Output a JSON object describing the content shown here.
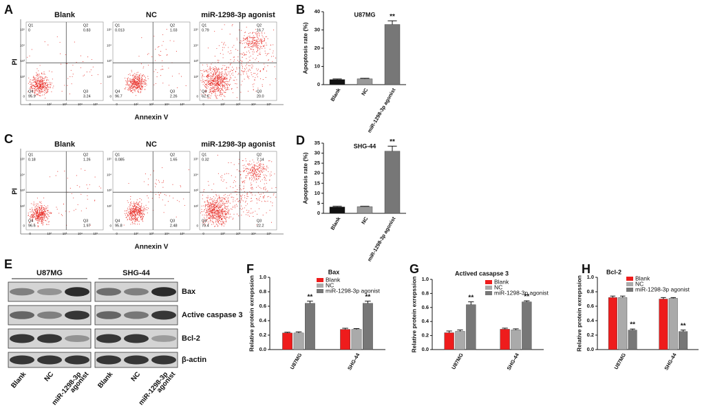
{
  "flow": [
    {
      "letter": "A",
      "y_label": "PI",
      "x_label": "Annexin V",
      "axis_ticks": [
        "0",
        "10²",
        "10³",
        "10⁴",
        "10⁵"
      ],
      "plots": [
        {
          "title": "Blank",
          "quadrants": [
            {
              "name": "Q1",
              "value": "0"
            },
            {
              "name": "Q2",
              "value": "0.83"
            },
            {
              "name": "Q3",
              "value": "3.24"
            },
            {
              "name": "Q4",
              "value": "95.9"
            }
          ]
        },
        {
          "title": "NC",
          "quadrants": [
            {
              "name": "Q1",
              "value": "0.013"
            },
            {
              "name": "Q2",
              "value": "1.03"
            },
            {
              "name": "Q3",
              "value": "2.26"
            },
            {
              "name": "Q4",
              "value": "96.7"
            }
          ]
        },
        {
          "title": "miR-1298-3p agonist",
          "quadrants": [
            {
              "name": "Q1",
              "value": "0.79"
            },
            {
              "name": "Q2",
              "value": "16.7"
            },
            {
              "name": "Q3",
              "value": "20.0"
            },
            {
              "name": "Q4",
              "value": "62.6"
            }
          ]
        }
      ]
    },
    {
      "letter": "C",
      "y_label": "PI",
      "x_label": "Annexin V",
      "axis_ticks": [
        "0",
        "10²",
        "10³",
        "10⁴",
        "10⁵"
      ],
      "plots": [
        {
          "title": "Blank",
          "quadrants": [
            {
              "name": "Q1",
              "value": "0.18"
            },
            {
              "name": "Q2",
              "value": "1.26"
            },
            {
              "name": "Q3",
              "value": "1.97"
            },
            {
              "name": "Q4",
              "value": "96.6"
            }
          ]
        },
        {
          "title": "NC",
          "quadrants": [
            {
              "name": "Q1",
              "value": "0.085"
            },
            {
              "name": "Q2",
              "value": "1.65"
            },
            {
              "name": "Q3",
              "value": "2.48"
            },
            {
              "name": "Q4",
              "value": "95.8"
            }
          ]
        },
        {
          "title": "miR-1298-3p agonist",
          "quadrants": [
            {
              "name": "Q1",
              "value": "0.32"
            },
            {
              "name": "Q2",
              "value": "7.14"
            },
            {
              "name": "Q3",
              "value": "22.2"
            },
            {
              "name": "Q4",
              "value": "70.4"
            }
          ]
        }
      ]
    }
  ],
  "blot": {
    "letter": "E",
    "groups": [
      "U87MG",
      "SHG-44"
    ],
    "proteins": [
      "Bax",
      "Active caspase 3",
      "Bcl-2",
      "β-actin"
    ],
    "lanes": [
      [
        "Blank"
      ],
      [
        "NC"
      ],
      [
        "miR-1298-3p",
        "agonist"
      ]
    ]
  },
  "chart_data": [
    {
      "type": "bar",
      "letter": "B",
      "title": "U87MG",
      "y_label": "Apoptosis rate (%)",
      "categories": [
        "Blank",
        "NC",
        "miR-1298-3p agonist"
      ],
      "values": [
        2.8,
        3.2,
        33
      ],
      "errors": [
        0.3,
        0.3,
        2
      ],
      "colors": [
        "#111111",
        "#999999",
        "#777777"
      ],
      "ylim": [
        0,
        40
      ],
      "yticks": [
        0,
        10,
        20,
        30,
        40
      ],
      "annotations": [
        {
          "index": 2,
          "text": "**"
        }
      ]
    },
    {
      "type": "bar",
      "letter": "D",
      "title": "SHG-44",
      "y_label": "Apoptosis rate (%)",
      "categories": [
        "Blank",
        "NC",
        "miR-1298-3p agonist"
      ],
      "values": [
        3.2,
        3.3,
        31
      ],
      "errors": [
        0.3,
        0.2,
        2.5
      ],
      "colors": [
        "#111111",
        "#999999",
        "#777777"
      ],
      "ylim": [
        0,
        35
      ],
      "yticks": [
        0,
        5,
        10,
        15,
        20,
        25,
        30,
        35
      ],
      "annotations": [
        {
          "index": 2,
          "text": "**"
        }
      ]
    },
    {
      "type": "bar",
      "letter": "F",
      "title": "Bax",
      "y_label": "Relative protein exrepssion",
      "categories": [
        "U87MG",
        "SHG-44"
      ],
      "series": [
        {
          "name": "Blank",
          "color": "#ee1c1c",
          "values": [
            0.23,
            0.28
          ],
          "errors": [
            0.01,
            0.015
          ]
        },
        {
          "name": "NC",
          "color": "#aaaaaa",
          "values": [
            0.23,
            0.28
          ],
          "errors": [
            0.015,
            0.01
          ]
        },
        {
          "name": "miR-1298-3p agonist",
          "color": "#777777",
          "values": [
            0.64,
            0.64
          ],
          "errors": [
            0.03,
            0.03
          ]
        }
      ],
      "ylim": [
        0,
        1
      ],
      "yticks": [
        {
          "value": 0,
          "label": "0.0"
        },
        0.2,
        0.4,
        0.6,
        0.8,
        {
          "value": 1,
          "label": "1.0"
        }
      ],
      "annotations": [
        {
          "series": 2,
          "index": 0,
          "text": "**"
        },
        {
          "series": 2,
          "index": 1,
          "text": "**"
        }
      ]
    },
    {
      "type": "bar",
      "letter": "G",
      "title": "Actived casapse 3",
      "y_label": "Relative protein exrepssion",
      "categories": [
        "U87MG",
        "SHG-44"
      ],
      "series": [
        {
          "name": "Blank",
          "color": "#ee1c1c",
          "values": [
            0.24,
            0.29
          ],
          "errors": [
            0.025,
            0.015
          ]
        },
        {
          "name": "NC",
          "color": "#aaaaaa",
          "values": [
            0.26,
            0.28
          ],
          "errors": [
            0.02,
            0.015
          ]
        },
        {
          "name": "miR-1298-3p agonist",
          "color": "#777777",
          "values": [
            0.64,
            0.68
          ],
          "errors": [
            0.04,
            0.015
          ]
        }
      ],
      "ylim": [
        0,
        1
      ],
      "yticks": [
        {
          "value": 0,
          "label": "0.0"
        },
        0.2,
        0.4,
        0.6,
        0.8,
        {
          "value": 1,
          "label": "1.0"
        }
      ],
      "annotations": [
        {
          "series": 2,
          "index": 0,
          "text": "**"
        },
        {
          "series": 2,
          "index": 1,
          "text": "**"
        }
      ]
    },
    {
      "type": "bar",
      "letter": "H",
      "title": "Bcl-2",
      "y_label": "Relative protein exrepssion",
      "categories": [
        "U87MG",
        "SHG-44"
      ],
      "series": [
        {
          "name": "Blank",
          "color": "#ee1c1c",
          "values": [
            0.72,
            0.7
          ],
          "errors": [
            0.02,
            0.02
          ]
        },
        {
          "name": "NC",
          "color": "#aaaaaa",
          "values": [
            0.72,
            0.71
          ],
          "errors": [
            0.02,
            0.01
          ]
        },
        {
          "name": "miR-1298-3p agonist",
          "color": "#777777",
          "values": [
            0.27,
            0.25
          ],
          "errors": [
            0.015,
            0.02
          ]
        }
      ],
      "ylim": [
        0,
        1
      ],
      "yticks": [
        {
          "value": 0,
          "label": "0.0"
        },
        0.2,
        0.4,
        0.6,
        0.8,
        {
          "value": 1,
          "label": "1.0"
        }
      ],
      "annotations": [
        {
          "series": 2,
          "index": 0,
          "text": "**"
        },
        {
          "series": 2,
          "index": 1,
          "text": "**"
        }
      ]
    }
  ]
}
